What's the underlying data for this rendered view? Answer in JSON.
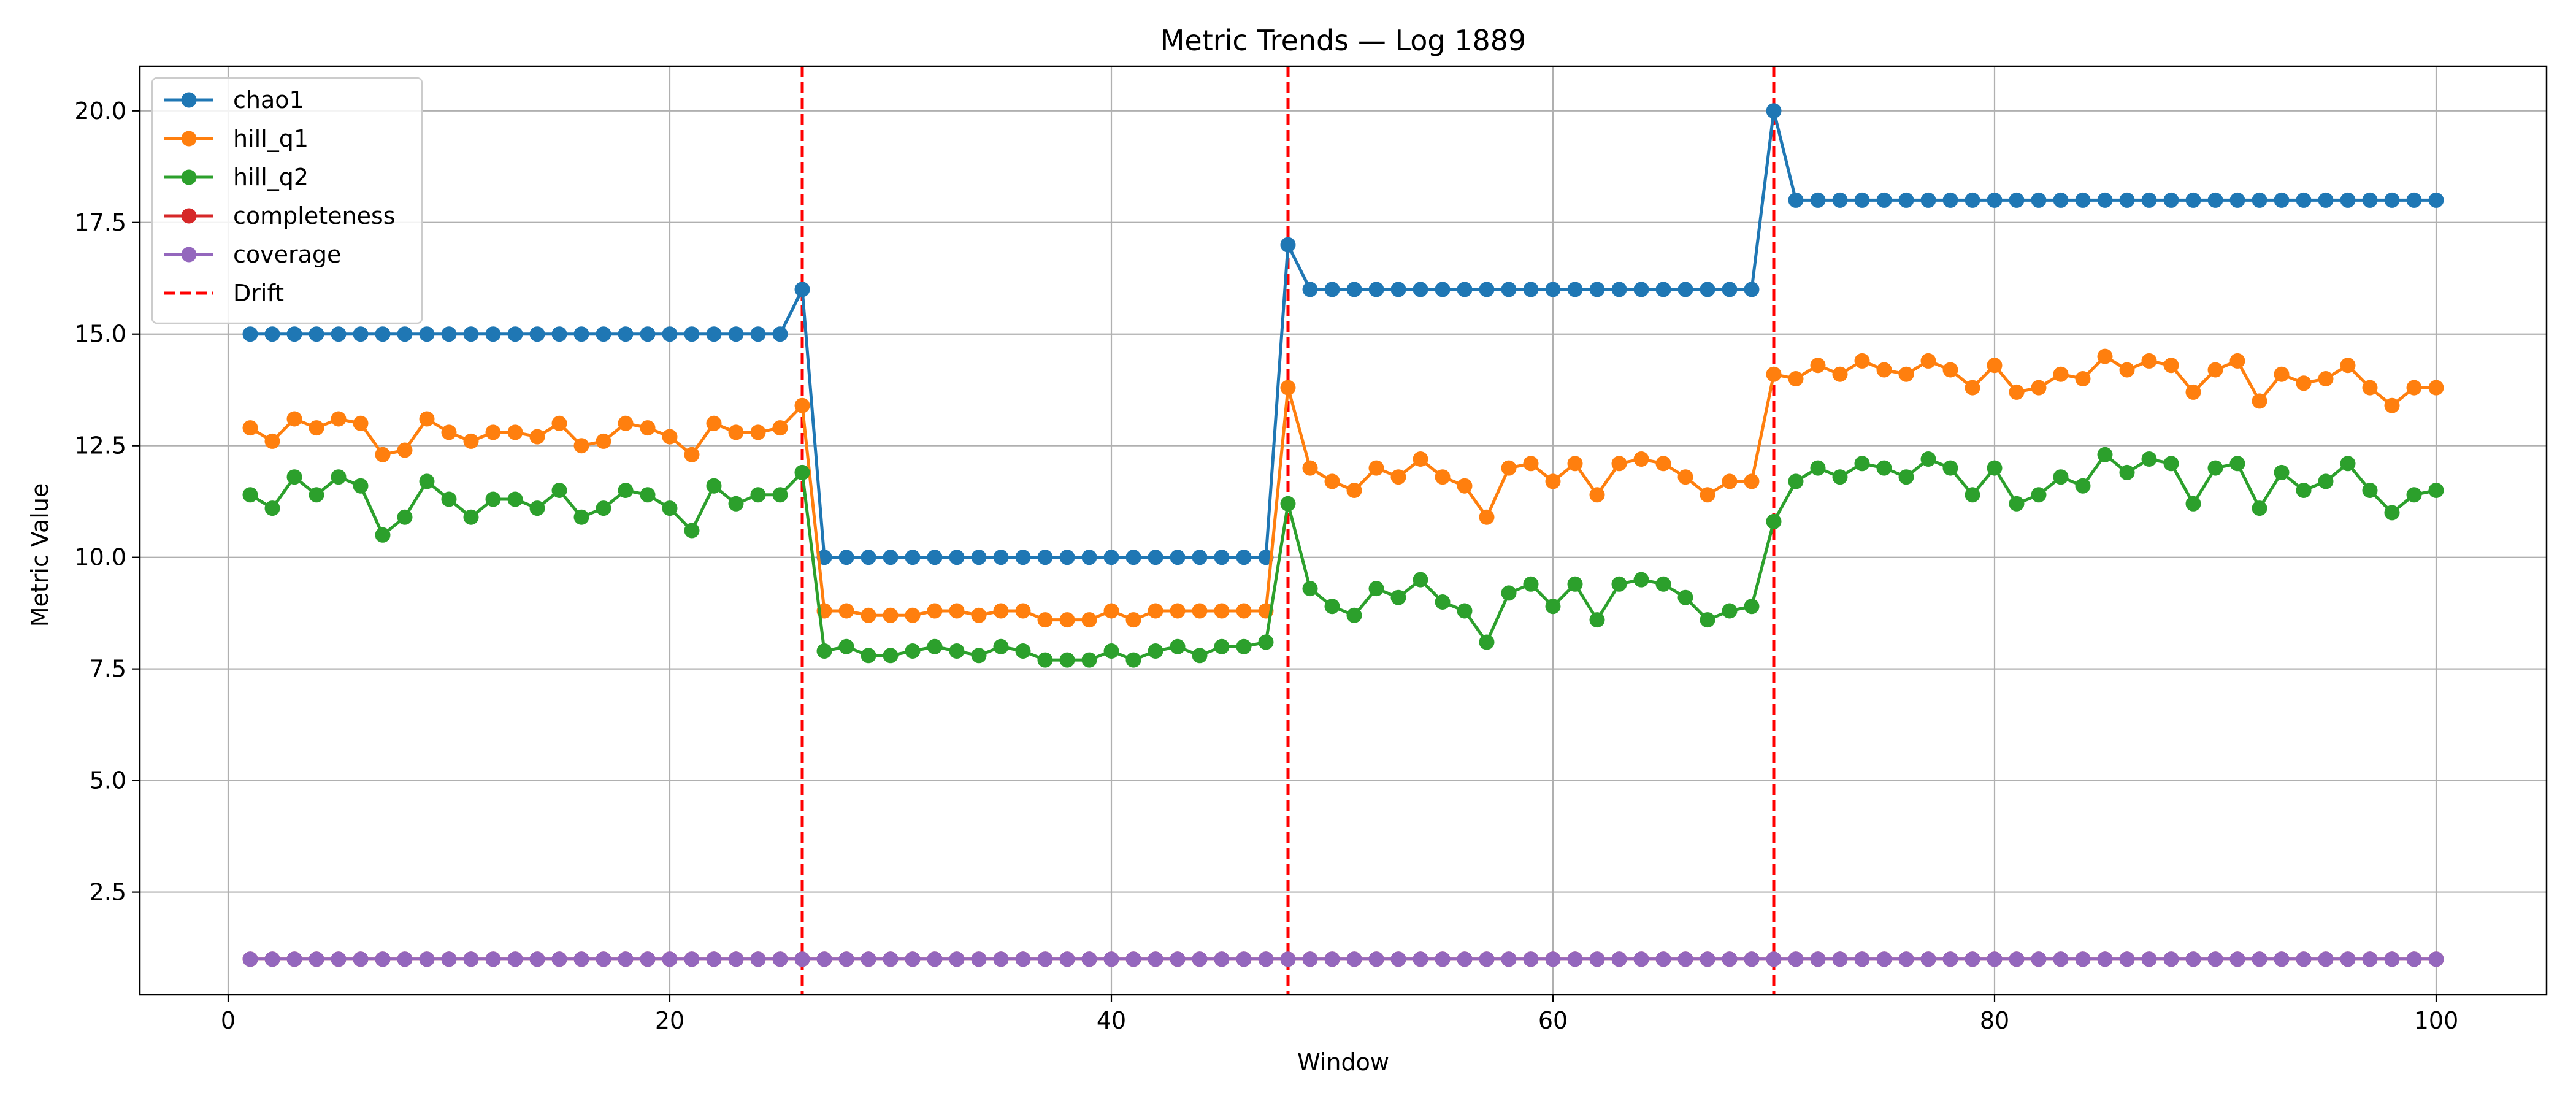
{
  "chart_data": {
    "type": "line",
    "title": "Metric Trends — Log 1889",
    "xlabel": "Window",
    "ylabel": "Metric Value",
    "xlim": [
      -4,
      105
    ],
    "ylim": [
      0.2,
      21
    ],
    "xticks": [
      0,
      20,
      40,
      60,
      80,
      100
    ],
    "yticks": [
      2.5,
      5.0,
      7.5,
      10.0,
      12.5,
      15.0,
      17.5,
      20.0
    ],
    "grid": true,
    "legend_position": "top-left",
    "x": [
      1,
      2,
      3,
      4,
      5,
      6,
      7,
      8,
      9,
      10,
      11,
      12,
      13,
      14,
      15,
      16,
      17,
      18,
      19,
      20,
      21,
      22,
      23,
      24,
      25,
      26,
      27,
      28,
      29,
      30,
      31,
      32,
      33,
      34,
      35,
      36,
      37,
      38,
      39,
      40,
      41,
      42,
      43,
      44,
      45,
      46,
      47,
      48,
      49,
      50,
      51,
      52,
      53,
      54,
      55,
      56,
      57,
      58,
      59,
      60,
      61,
      62,
      63,
      64,
      65,
      66,
      67,
      68,
      69,
      70,
      71,
      72,
      73,
      74,
      75,
      76,
      77,
      78,
      79,
      80,
      81,
      82,
      83,
      84,
      85,
      86,
      87,
      88,
      89,
      90,
      91,
      92,
      93,
      94,
      95,
      96,
      97,
      98,
      99,
      100
    ],
    "series": [
      {
        "name": "chao1",
        "color": "#1f77b4",
        "values": [
          15,
          15,
          15,
          15,
          15,
          15,
          15,
          15,
          15,
          15,
          15,
          15,
          15,
          15,
          15,
          15,
          15,
          15,
          15,
          15,
          15,
          15,
          15,
          15,
          15,
          16,
          10,
          10,
          10,
          10,
          10,
          10,
          10,
          10,
          10,
          10,
          10,
          10,
          10,
          10,
          10,
          10,
          10,
          10,
          10,
          10,
          10,
          17,
          16,
          16,
          16,
          16,
          16,
          16,
          16,
          16,
          16,
          16,
          16,
          16,
          16,
          16,
          16,
          16,
          16,
          16,
          16,
          16,
          16,
          20,
          18,
          18,
          18,
          18,
          18,
          18,
          18,
          18,
          18,
          18,
          18,
          18,
          18,
          18,
          18,
          18,
          18,
          18,
          18,
          18,
          18,
          18,
          18,
          18,
          18,
          18,
          18,
          18,
          18,
          18
        ]
      },
      {
        "name": "hill_q1",
        "color": "#ff7f0e",
        "values": [
          12.9,
          12.6,
          13.1,
          12.9,
          13.1,
          13.0,
          12.3,
          12.4,
          13.1,
          12.8,
          12.6,
          12.8,
          12.8,
          12.7,
          13.0,
          12.5,
          12.6,
          13.0,
          12.9,
          12.7,
          12.3,
          13.0,
          12.8,
          12.8,
          12.9,
          13.4,
          8.8,
          8.8,
          8.7,
          8.7,
          8.7,
          8.8,
          8.8,
          8.7,
          8.8,
          8.8,
          8.6,
          8.6,
          8.6,
          8.8,
          8.6,
          8.8,
          8.8,
          8.8,
          8.8,
          8.8,
          8.8,
          13.8,
          12.0,
          11.7,
          11.5,
          12.0,
          11.8,
          12.2,
          11.8,
          11.6,
          10.9,
          12.0,
          12.1,
          11.7,
          12.1,
          11.4,
          12.1,
          12.2,
          12.1,
          11.8,
          11.4,
          11.7,
          11.7,
          14.1,
          14.0,
          14.3,
          14.1,
          14.4,
          14.2,
          14.1,
          14.4,
          14.2,
          13.8,
          14.3,
          13.7,
          13.8,
          14.1,
          14.0,
          14.5,
          14.2,
          14.4,
          14.3,
          13.7,
          14.2,
          14.4,
          13.5,
          14.1,
          13.9,
          14.0,
          14.3,
          13.8,
          13.4,
          13.8,
          13.8
        ]
      },
      {
        "name": "hill_q2",
        "color": "#2ca02c",
        "values": [
          11.4,
          11.1,
          11.8,
          11.4,
          11.8,
          11.6,
          10.5,
          10.9,
          11.7,
          11.3,
          10.9,
          11.3,
          11.3,
          11.1,
          11.5,
          10.9,
          11.1,
          11.5,
          11.4,
          11.1,
          10.6,
          11.6,
          11.2,
          11.4,
          11.4,
          11.9,
          7.9,
          8.0,
          7.8,
          7.8,
          7.9,
          8.0,
          7.9,
          7.8,
          8.0,
          7.9,
          7.7,
          7.7,
          7.7,
          7.9,
          7.7,
          7.9,
          8.0,
          7.8,
          8.0,
          8.0,
          8.1,
          11.2,
          9.3,
          8.9,
          8.7,
          9.3,
          9.1,
          9.5,
          9.0,
          8.8,
          8.1,
          9.2,
          9.4,
          8.9,
          9.4,
          8.6,
          9.4,
          9.5,
          9.4,
          9.1,
          8.6,
          8.8,
          8.9,
          10.8,
          11.7,
          12.0,
          11.8,
          12.1,
          12.0,
          11.8,
          12.2,
          12.0,
          11.4,
          12.0,
          11.2,
          11.4,
          11.8,
          11.6,
          12.3,
          11.9,
          12.2,
          12.1,
          11.2,
          12.0,
          12.1,
          11.1,
          11.9,
          11.5,
          11.7,
          12.1,
          11.5,
          11.0,
          11.4,
          11.5
        ]
      },
      {
        "name": "completeness",
        "color": "#d62728",
        "values": [
          1,
          1,
          1,
          1,
          1,
          1,
          1,
          1,
          1,
          1,
          1,
          1,
          1,
          1,
          1,
          1,
          1,
          1,
          1,
          1,
          1,
          1,
          1,
          1,
          1,
          1,
          1,
          1,
          1,
          1,
          1,
          1,
          1,
          1,
          1,
          1,
          1,
          1,
          1,
          1,
          1,
          1,
          1,
          1,
          1,
          1,
          1,
          1,
          1,
          1,
          1,
          1,
          1,
          1,
          1,
          1,
          1,
          1,
          1,
          1,
          1,
          1,
          1,
          1,
          1,
          1,
          1,
          1,
          1,
          1,
          1,
          1,
          1,
          1,
          1,
          1,
          1,
          1,
          1,
          1,
          1,
          1,
          1,
          1,
          1,
          1,
          1,
          1,
          1,
          1,
          1,
          1,
          1,
          1,
          1,
          1,
          1,
          1,
          1,
          1
        ]
      },
      {
        "name": "coverage",
        "color": "#9467bd",
        "values": [
          1,
          1,
          1,
          1,
          1,
          1,
          1,
          1,
          1,
          1,
          1,
          1,
          1,
          1,
          1,
          1,
          1,
          1,
          1,
          1,
          1,
          1,
          1,
          1,
          1,
          1,
          1,
          1,
          1,
          1,
          1,
          1,
          1,
          1,
          1,
          1,
          1,
          1,
          1,
          1,
          1,
          1,
          1,
          1,
          1,
          1,
          1,
          1,
          1,
          1,
          1,
          1,
          1,
          1,
          1,
          1,
          1,
          1,
          1,
          1,
          1,
          1,
          1,
          1,
          1,
          1,
          1,
          1,
          1,
          1,
          1,
          1,
          1,
          1,
          1,
          1,
          1,
          1,
          1,
          1,
          1,
          1,
          1,
          1,
          1,
          1,
          1,
          1,
          1,
          1,
          1,
          1,
          1,
          1,
          1,
          1,
          1,
          1,
          1,
          1
        ]
      }
    ],
    "drift": {
      "name": "Drift",
      "color": "#ff0000",
      "x": [
        26,
        48,
        70
      ]
    }
  }
}
